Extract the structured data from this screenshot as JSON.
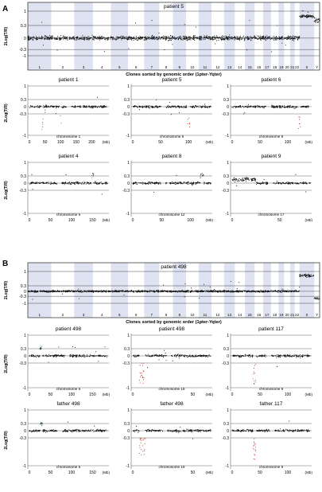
{
  "figure": {
    "panels": [
      {
        "letter": "A",
        "genome": {
          "title": "patient 5",
          "ylabel": "2Log(T/R)",
          "chromosome_labels": [
            "1",
            "2",
            "3",
            "4",
            "5",
            "6",
            "7",
            "8",
            "9",
            "10",
            "11",
            "12",
            "13",
            "14",
            "15",
            "16",
            "17",
            "18",
            "19",
            "20",
            "21",
            "22",
            "X",
            "Y"
          ],
          "xaxis_title": "Clones sorted by genomic order (1pter-Yqter)"
        },
        "minis": [
          {
            "title": "patient 1",
            "chrom": "chromosome 1",
            "ticks": [
              "0",
              "50",
              "100",
              "150",
              "200"
            ],
            "unit": "(Mb)"
          },
          {
            "title": "patient 5",
            "chrom": "chromosome 9",
            "ticks": [
              "0",
              "50",
              "100"
            ],
            "unit": "(Mb)"
          },
          {
            "title": "patient 6",
            "chrom": "chromosome 9",
            "ticks": [
              "0",
              "50",
              "100"
            ],
            "unit": "(Mb)"
          },
          {
            "title": "patient 4",
            "chrom": "chromosome 5",
            "ticks": [
              "0",
              "50",
              "100",
              "150"
            ],
            "unit": "(Mb)"
          },
          {
            "title": "patient 8",
            "chrom": "chromosome 12",
            "ticks": [
              "0",
              "50",
              "100"
            ],
            "unit": "(Mb)"
          },
          {
            "title": "patient 9",
            "chrom": "chromosome 17",
            "ticks": [
              "0",
              "50"
            ],
            "unit": "(Mb)"
          }
        ]
      },
      {
        "letter": "B",
        "genome": {
          "title": "patient 498",
          "ylabel": "2Log(T/R)",
          "chromosome_labels": [
            "1",
            "2",
            "3",
            "4",
            "5",
            "6",
            "7",
            "8",
            "9",
            "10",
            "11",
            "12",
            "13",
            "14",
            "15",
            "16",
            "17",
            "18",
            "19",
            "20",
            "21",
            "22",
            "X",
            "Y"
          ],
          "xaxis_title": "Clones sorted by genomic order (1pter-Yqter)"
        },
        "minis": [
          {
            "title": "patient 498",
            "chrom": "chromosome 5",
            "ticks": [
              "0",
              "50",
              "100",
              "150"
            ],
            "unit": "(Mb)"
          },
          {
            "title": "patient 498",
            "chrom": "chromosome 19",
            "ticks": [
              "0",
              "50"
            ],
            "unit": "(Mb)"
          },
          {
            "title": "patient 117",
            "chrom": "chromosome 9",
            "ticks": [
              "0",
              "50",
              "100"
            ],
            "unit": "(Mb)"
          },
          {
            "title": "father 498",
            "chrom": "chromosome 5",
            "ticks": [
              "0",
              "50",
              "100",
              "150"
            ],
            "unit": "(Mb)"
          },
          {
            "title": "father 498",
            "chrom": "chromosome 19",
            "ticks": [
              "0",
              "50"
            ],
            "unit": "(Mb)"
          },
          {
            "title": "father 117",
            "chrom": "chromosome 9",
            "ticks": [
              "0",
              "50",
              "100"
            ],
            "unit": "(Mb)"
          }
        ]
      }
    ]
  },
  "chart_data": [
    {
      "type": "scatter",
      "title": "patient 5",
      "ylabel": "2Log(T/R)",
      "xlabel": "Clones sorted by genomic order (1pter-Yqter)",
      "yticks": [
        -1,
        -0.3,
        0,
        0.3,
        1
      ],
      "ylim": [
        -1.2,
        1.4
      ],
      "categories": [
        "1",
        "2",
        "3",
        "4",
        "5",
        "6",
        "7",
        "8",
        "9",
        "10",
        "11",
        "12",
        "13",
        "14",
        "15",
        "16",
        "17",
        "18",
        "19",
        "20",
        "21",
        "22",
        "X",
        "Y"
      ],
      "series": [
        {
          "x_by_chromosome": true,
          "baseline": 0,
          "X_level": 0.8,
          "Y_level": 0.6
        }
      ]
    },
    {
      "type": "scatter",
      "title": "patient 1",
      "xlabel": "chromosome 1",
      "xlim": [
        0,
        250
      ],
      "xticks": [
        0,
        50,
        100,
        150,
        200
      ],
      "yticks": [
        -1,
        -0.3,
        0,
        0.3,
        1
      ],
      "series": [
        {
          "baseline": 0,
          "loss_at_Mb": [
            42,
            100
          ]
        }
      ]
    },
    {
      "type": "scatter",
      "title": "patient 5",
      "xlabel": "chromosome 9",
      "xlim": [
        0,
        140
      ],
      "xticks": [
        0,
        50,
        100
      ],
      "yticks": [
        -1,
        -0.3,
        0,
        0.3,
        1
      ],
      "series": [
        {
          "baseline": 0,
          "loss_at_Mb": [
            100
          ]
        }
      ]
    },
    {
      "type": "scatter",
      "title": "patient 6",
      "xlabel": "chromosome 9",
      "xlim": [
        0,
        140
      ],
      "xticks": [
        0,
        50,
        100
      ],
      "yticks": [
        -1,
        -0.3,
        0,
        0.3,
        1
      ],
      "series": [
        {
          "baseline": 0,
          "loss_at_Mb": [
            120
          ]
        }
      ]
    },
    {
      "type": "scatter",
      "title": "patient 4",
      "xlabel": "chromosome 5",
      "xlim": [
        0,
        185
      ],
      "xticks": [
        0,
        50,
        100,
        150
      ],
      "yticks": [
        -1,
        -0.3,
        0,
        0.3,
        1
      ],
      "series": [
        {
          "baseline": 0,
          "gain_at_Mb": [
            150
          ]
        }
      ]
    },
    {
      "type": "scatter",
      "title": "patient 8",
      "xlabel": "chromosome 12",
      "xlim": [
        0,
        135
      ],
      "xticks": [
        0,
        50,
        100
      ],
      "yticks": [
        -1,
        -0.3,
        0,
        0.3,
        1
      ],
      "series": [
        {
          "baseline": 0,
          "gain_at_Mb": [
            120
          ]
        }
      ]
    },
    {
      "type": "scatter",
      "title": "patient 9",
      "xlabel": "chromosome 17",
      "xlim": [
        0,
        82
      ],
      "xticks": [
        0,
        50
      ],
      "yticks": [
        -1,
        -0.3,
        0,
        0.3,
        1
      ],
      "series": [
        {
          "baseline": 0,
          "gain_range_Mb": [
            0,
            25
          ]
        }
      ]
    },
    {
      "type": "scatter",
      "title": "patient 498",
      "ylabel": "2Log(T/R)",
      "xlabel": "Clones sorted by genomic order (1pter-Yqter)",
      "yticks": [
        -1,
        -0.3,
        0,
        0.3,
        1
      ],
      "ylim": [
        -1.2,
        1.4
      ],
      "categories": [
        "1",
        "2",
        "3",
        "4",
        "5",
        "6",
        "7",
        "8",
        "9",
        "10",
        "11",
        "12",
        "13",
        "14",
        "15",
        "16",
        "17",
        "18",
        "19",
        "20",
        "21",
        "22",
        "X",
        "Y"
      ],
      "series": [
        {
          "x_by_chromosome": true,
          "baseline": 0,
          "X_level": 0.8,
          "Y_level": -0.6
        }
      ]
    },
    {
      "type": "scatter",
      "title": "patient 498",
      "xlabel": "chromosome 5",
      "xlim": [
        0,
        185
      ],
      "xticks": [
        0,
        50,
        100,
        150
      ],
      "yticks": [
        -1,
        -0.3,
        0,
        0.3,
        1
      ],
      "series": [
        {
          "baseline": 0,
          "gain_at_Mb": [
            28
          ]
        }
      ]
    },
    {
      "type": "scatter",
      "title": "patient 498",
      "xlabel": "chromosome 19",
      "xlim": [
        0,
        65
      ],
      "xticks": [
        0,
        50
      ],
      "yticks": [
        -1,
        -0.3,
        0,
        0.3,
        1
      ],
      "series": [
        {
          "baseline": 0,
          "loss_at_Mb": [
            8
          ]
        }
      ]
    },
    {
      "type": "scatter",
      "title": "patient 117",
      "xlabel": "chromosome 9",
      "xlim": [
        0,
        140
      ],
      "xticks": [
        0,
        50,
        100
      ],
      "yticks": [
        -1,
        -0.3,
        0,
        0.3,
        1
      ],
      "series": [
        {
          "baseline": 0,
          "loss_at_Mb": [
            40
          ]
        }
      ]
    },
    {
      "type": "scatter",
      "title": "father 498",
      "xlabel": "chromosome 5",
      "xlim": [
        0,
        185
      ],
      "xticks": [
        0,
        50,
        100,
        150
      ],
      "yticks": [
        -1,
        -0.3,
        0,
        0.3,
        1
      ],
      "series": [
        {
          "baseline": 0,
          "gain_at_Mb": [
            28
          ]
        }
      ]
    },
    {
      "type": "scatter",
      "title": "father 498",
      "xlabel": "chromosome 19",
      "xlim": [
        0,
        65
      ],
      "xticks": [
        0,
        50
      ],
      "yticks": [
        -1,
        -0.3,
        0,
        0.3,
        1
      ],
      "series": [
        {
          "baseline": 0,
          "loss_at_Mb": [
            8
          ]
        }
      ]
    },
    {
      "type": "scatter",
      "title": "father 117",
      "xlabel": "chromosome 9",
      "xlim": [
        0,
        140
      ],
      "xticks": [
        0,
        50,
        100
      ],
      "yticks": [
        -1,
        -0.3,
        0,
        0.3,
        1
      ],
      "series": [
        {
          "baseline": 0,
          "loss_at_Mb": [
            40
          ]
        }
      ]
    }
  ]
}
